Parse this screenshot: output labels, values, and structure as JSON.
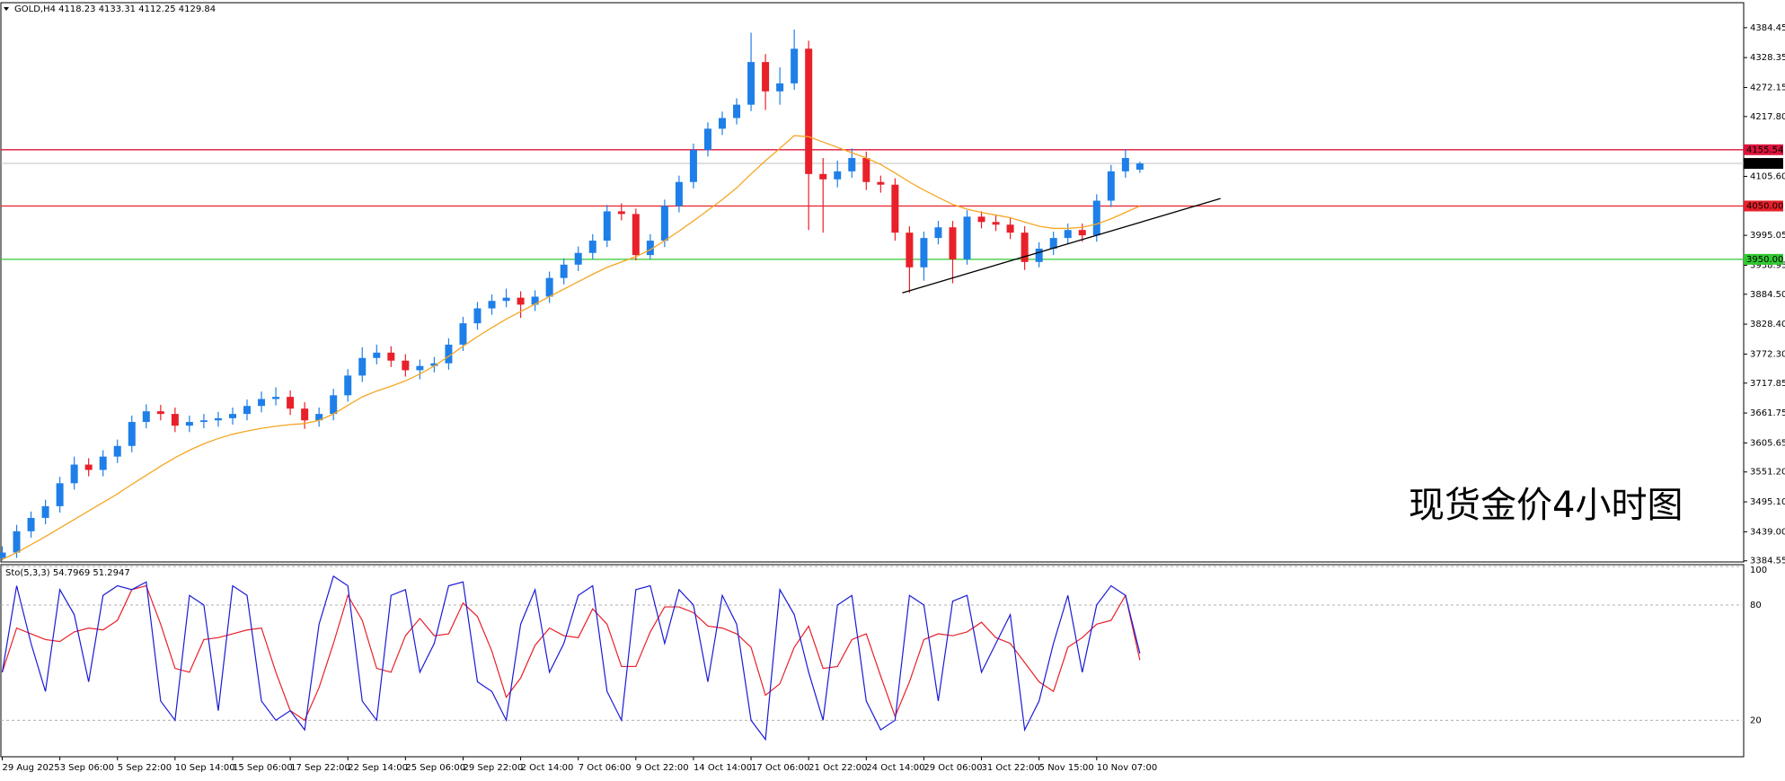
{
  "chart_data": {
    "type": "candlestick",
    "symbol": "GOLD,H4",
    "annotation": "现货金价4小时图",
    "categories": [
      "29 Aug 2025",
      null,
      null,
      null,
      "3 Sep 06:00",
      null,
      null,
      null,
      "5 Sep 22:00",
      null,
      null,
      null,
      "10 Sep 14:00",
      null,
      null,
      null,
      "15 Sep 06:00",
      null,
      null,
      null,
      "17 Sep 22:00",
      null,
      null,
      null,
      "22 Sep 14:00",
      null,
      null,
      null,
      "25 Sep 06:00",
      null,
      null,
      null,
      "29 Sep 22:00",
      null,
      null,
      null,
      "2 Oct 14:00",
      null,
      null,
      null,
      "7 Oct 06:00",
      null,
      null,
      null,
      "9 Oct 22:00",
      null,
      null,
      null,
      "14 Oct 14:00",
      null,
      null,
      null,
      "17 Oct 06:00",
      null,
      null,
      null,
      "21 Oct 22:00",
      null,
      null,
      null,
      "24 Oct 14:00",
      null,
      null,
      null,
      "29 Oct 06:00",
      null,
      null,
      null,
      "31 Oct 22:00",
      null,
      null,
      null,
      "5 Nov 15:00",
      null,
      null,
      null,
      "10 Nov 07:00",
      null,
      null,
      null
    ],
    "open": [
      3390,
      3400,
      3440,
      3465,
      3487,
      3530,
      3565,
      3555,
      3580,
      3600,
      3645,
      3665,
      3660,
      3638,
      3645,
      3648,
      3652,
      3660,
      3675,
      3688,
      3692,
      3670,
      3648,
      3660,
      3695,
      3732,
      3765,
      3775,
      3760,
      3742,
      3750,
      3755,
      3790,
      3830,
      3858,
      3872,
      3878,
      3865,
      3880,
      3915,
      3940,
      3962,
      3985,
      4040,
      4035,
      3958,
      3985,
      4050,
      4095,
      4155,
      4195,
      4215,
      4240,
      4320,
      4265,
      4280,
      4345,
      4110,
      4100,
      4115,
      4140,
      4095,
      4090,
      4000,
      3935,
      3990,
      4010,
      3950,
      4030,
      4020,
      4015,
      4000,
      3945,
      3970,
      3990,
      4005,
      3995,
      4060,
      4115,
      4118.23
    ],
    "high": [
      3412,
      3452,
      3477,
      3499,
      3542,
      3580,
      3577,
      3592,
      3612,
      3657,
      3678,
      3677,
      3672,
      3657,
      3660,
      3664,
      3672,
      3687,
      3702,
      3710,
      3704,
      3682,
      3672,
      3707,
      3744,
      3785,
      3790,
      3787,
      3772,
      3762,
      3767,
      3802,
      3842,
      3870,
      3884,
      3895,
      3890,
      3892,
      3927,
      3952,
      3974,
      3997,
      4052,
      4055,
      4045,
      3997,
      4062,
      4107,
      4167,
      4207,
      4227,
      4252,
      4375,
      4335,
      4310,
      4381,
      4360,
      4140,
      4135,
      4158,
      4152,
      4107,
      4102,
      4012,
      4002,
      4022,
      4022,
      4042,
      4040,
      4032,
      4027,
      4012,
      3982,
      4002,
      4017,
      4017,
      4072,
      4127,
      4155,
      4133.31
    ],
    "low": [
      3385,
      3390,
      3428,
      3453,
      3475,
      3518,
      3543,
      3543,
      3568,
      3588,
      3633,
      3648,
      3626,
      3626,
      3633,
      3636,
      3640,
      3648,
      3663,
      3676,
      3658,
      3632,
      3636,
      3648,
      3683,
      3720,
      3753,
      3748,
      3730,
      3725,
      3738,
      3743,
      3778,
      3818,
      3846,
      3860,
      3840,
      3853,
      3868,
      3903,
      3928,
      3950,
      3973,
      4023,
      3948,
      3950,
      3973,
      4038,
      4083,
      4143,
      4183,
      4203,
      4228,
      4230,
      4240,
      4268,
      4005,
      4000,
      4085,
      4103,
      4080,
      4075,
      3985,
      3887,
      3910,
      3978,
      3905,
      3940,
      4008,
      4003,
      3988,
      3930,
      3935,
      3958,
      3978,
      3983,
      3983,
      4048,
      4103,
      4112.25
    ],
    "close": [
      3400,
      3440,
      3465,
      3487,
      3530,
      3565,
      3555,
      3580,
      3600,
      3645,
      3665,
      3660,
      3638,
      3645,
      3648,
      3652,
      3660,
      3675,
      3688,
      3692,
      3670,
      3648,
      3660,
      3695,
      3732,
      3765,
      3775,
      3760,
      3742,
      3750,
      3755,
      3790,
      3830,
      3858,
      3872,
      3878,
      3865,
      3880,
      3915,
      3940,
      3962,
      3985,
      4040,
      4035,
      3958,
      3985,
      4050,
      4095,
      4155,
      4195,
      4215,
      4240,
      4320,
      4265,
      4280,
      4345,
      4110,
      4100,
      4115,
      4140,
      4095,
      4090,
      4000,
      3935,
      3990,
      4010,
      3950,
      4030,
      4020,
      4015,
      4000,
      3945,
      3970,
      3990,
      4005,
      3995,
      4060,
      4115,
      4140,
      4129.84
    ],
    "up_color": "#1f7fe8",
    "down_color": "#e8202a",
    "ma": {
      "color": "#f5a623",
      "values": [
        3387,
        3400,
        3415,
        3430,
        3446,
        3462,
        3478,
        3494,
        3510,
        3528,
        3545,
        3562,
        3578,
        3592,
        3604,
        3614,
        3622,
        3628,
        3633,
        3637,
        3640,
        3642,
        3648,
        3660,
        3676,
        3692,
        3703,
        3712,
        3722,
        3735,
        3750,
        3768,
        3787,
        3805,
        3822,
        3838,
        3852,
        3866,
        3880,
        3894,
        3908,
        3922,
        3935,
        3945,
        3955,
        3968,
        3985,
        4003,
        4022,
        4042,
        4062,
        4084,
        4110,
        4135,
        4158,
        4182,
        4180,
        4170,
        4160,
        4150,
        4140,
        4128,
        4112,
        4095,
        4080,
        4066,
        4053,
        4044,
        4038,
        4033,
        4028,
        4020,
        4012,
        4008,
        4008,
        4010,
        4016,
        4026,
        4038,
        4050
      ]
    },
    "trendline": {
      "color": "#000000",
      "x": [
        62.5,
        84.6
      ],
      "y": [
        3887,
        4064
      ]
    },
    "levels": [
      {
        "value": 4155.54,
        "color": "#dc143c"
      },
      {
        "value": 4050,
        "label": "4050.00",
        "color": "#e8202a"
      },
      {
        "value": 3950,
        "label": "3950.00",
        "color": "#32c832"
      }
    ],
    "price_line_color": "#c0c0c0",
    "ylim": [
      3382.4,
      4431.3
    ],
    "yticks": [
      4384.45,
      4328.35,
      4272.15,
      {
        "value": 4217.8,
        "label": "4217.80"
      },
      {
        "value": 4105.6,
        "label": "4105.60"
      },
      3995.05,
      3938.95,
      {
        "value": 3884.5,
        "label": "3884.50"
      },
      {
        "value": 3828.4,
        "label": "3828.40"
      },
      {
        "value": 3772.3,
        "label": "3772.30"
      },
      3717.85,
      3661.75,
      3605.65,
      {
        "value": 3551.2,
        "label": "3551.20"
      },
      {
        "value": 3495.1,
        "label": "3495.10"
      },
      {
        "value": 3439,
        "label": "3439.00"
      },
      3384.55
    ],
    "stochastic": {
      "label": "Sto(5,3,3)",
      "ylim": [
        1,
        101
      ],
      "yticks": [
        100,
        80,
        20
      ],
      "series": [
        {
          "color": "#1a1ad6",
          "values": [
            45,
            90,
            60,
            35,
            88,
            75,
            40,
            85,
            90,
            88,
            92,
            30,
            20,
            85,
            80,
            25,
            90,
            85,
            30,
            20,
            25,
            15,
            70,
            95,
            90,
            30,
            20,
            85,
            88,
            45,
            60,
            90,
            92,
            40,
            35,
            20,
            70,
            88,
            45,
            60,
            85,
            90,
            35,
            20,
            88,
            90,
            60,
            88,
            80,
            40,
            85,
            70,
            20,
            10,
            88,
            75,
            45,
            20,
            80,
            85,
            30,
            15,
            20,
            85,
            80,
            30,
            82,
            85,
            45,
            60,
            75,
            15,
            30,
            60,
            85,
            45,
            80,
            90,
            85,
            54.7969
          ]
        },
        {
          "color": "#e8202a",
          "values": [
            45,
            68,
            65,
            62,
            61,
            66,
            68,
            67,
            72,
            88,
            90,
            70,
            47,
            45,
            62,
            63,
            65,
            67,
            68,
            45,
            25,
            20,
            37,
            60,
            85,
            72,
            47,
            45,
            64,
            73,
            64,
            65,
            81,
            74,
            56,
            32,
            42,
            59,
            68,
            64,
            63,
            78,
            70,
            48,
            48,
            66,
            79,
            79,
            76,
            69,
            68,
            65,
            58,
            33,
            39,
            58,
            69,
            47,
            48,
            62,
            65,
            43,
            22,
            40,
            62,
            65,
            64,
            66,
            71,
            63,
            60,
            50,
            40,
            35,
            58,
            63,
            70,
            72,
            85,
            51.2947
          ]
        }
      ]
    }
  }
}
